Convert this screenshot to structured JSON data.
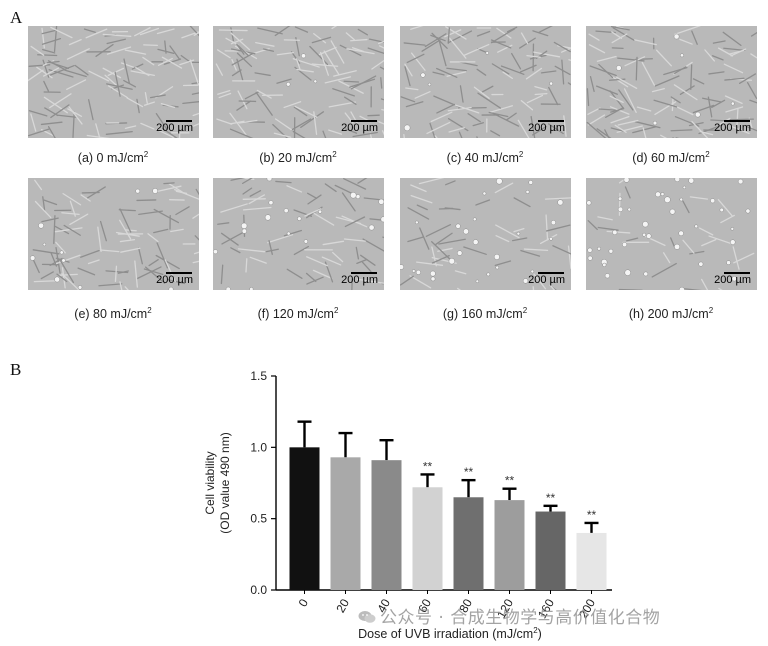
{
  "panel_a_label": "A",
  "panel_b_label": "B",
  "micrographs": [
    {
      "caption": "(a) 0 mJ/cm",
      "sup": "2",
      "scale": "200 µm",
      "density": 1.0,
      "dead": 0
    },
    {
      "caption": "(b) 20 mJ/cm",
      "sup": "2",
      "scale": "200 µm",
      "density": 0.95,
      "dead": 3
    },
    {
      "caption": "(c) 40 mJ/cm",
      "sup": "2",
      "scale": "200 µm",
      "density": 0.9,
      "dead": 5
    },
    {
      "caption": "(d) 60 mJ/cm",
      "sup": "2",
      "scale": "200 µm",
      "density": 0.95,
      "dead": 6
    },
    {
      "caption": "(e) 80 mJ/cm",
      "sup": "2",
      "scale": "200 µm",
      "density": 0.75,
      "dead": 10
    },
    {
      "caption": "(f) 120 mJ/cm",
      "sup": "2",
      "scale": "200 µm",
      "density": 0.55,
      "dead": 18
    },
    {
      "caption": "(g) 160 mJ/cm",
      "sup": "2",
      "scale": "200 µm",
      "density": 0.4,
      "dead": 26
    },
    {
      "caption": "(h) 200 mJ/cm",
      "sup": "2",
      "scale": "200 µm",
      "density": 0.25,
      "dead": 40
    }
  ],
  "chart_data": {
    "type": "bar",
    "categories": [
      "0",
      "20",
      "40",
      "60",
      "80",
      "120",
      "160",
      "200"
    ],
    "values": [
      1.0,
      0.93,
      0.91,
      0.72,
      0.65,
      0.63,
      0.55,
      0.4
    ],
    "errors": [
      0.18,
      0.17,
      0.14,
      0.09,
      0.12,
      0.08,
      0.04,
      0.07
    ],
    "significance": [
      "",
      "",
      "",
      "**",
      "**",
      "**",
      "**",
      "**"
    ],
    "bar_colors": [
      "#111111",
      "#a9a9a9",
      "#8a8a8a",
      "#d2d2d2",
      "#6f6f6f",
      "#9d9d9d",
      "#666666",
      "#e6e6e6"
    ],
    "ylim": [
      0.0,
      1.5
    ],
    "yticks": [
      "0.0",
      "0.5",
      "1.0",
      "1.5"
    ],
    "ylabel_line1": "Cell viability",
    "ylabel_line2": "(OD value 490 nm)",
    "xlabel": "Dose of UVB irradiation (mJ/cm",
    "xlabel_sup": "2",
    "xlabel_end": ")",
    "grid": false,
    "legend": false
  },
  "watermark": "公众号 · 合成生物学与高价值化合物"
}
